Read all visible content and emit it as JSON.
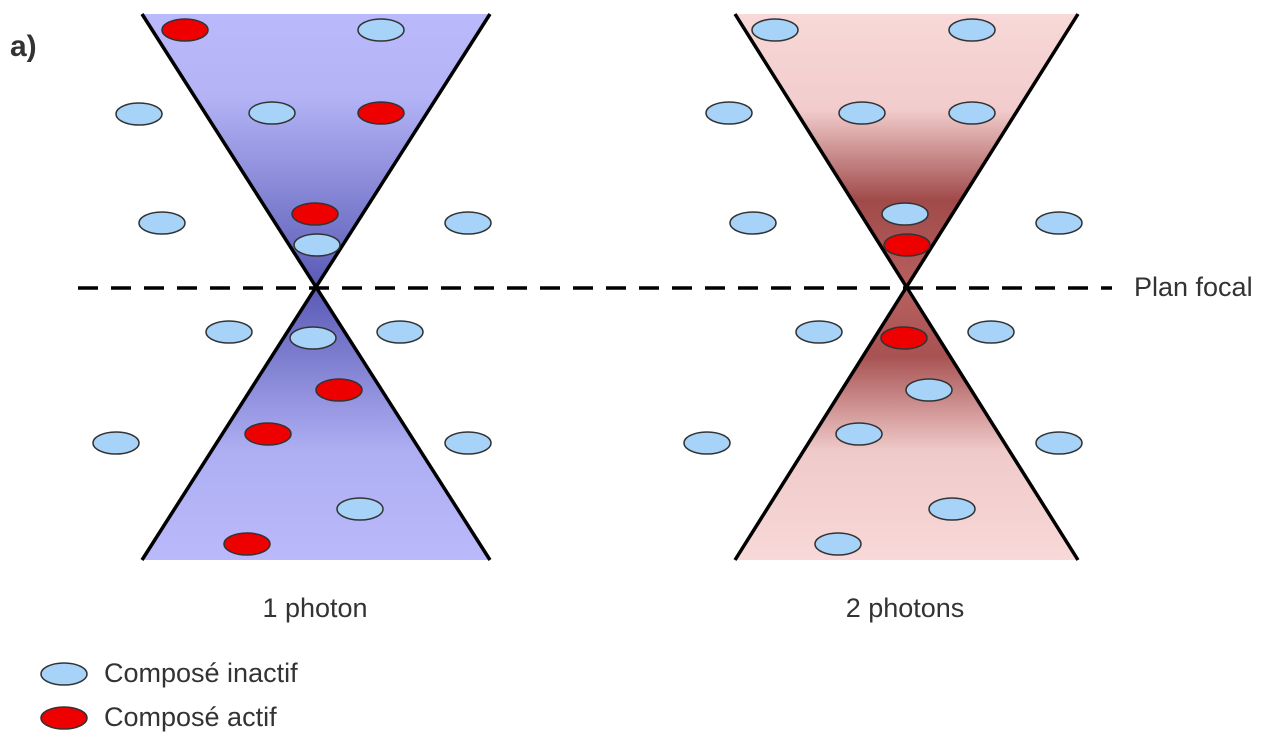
{
  "panel_label": "a)",
  "focal_label": "Plan focal",
  "panels": [
    {
      "label": "1 photon"
    },
    {
      "label": "2 photons"
    }
  ],
  "legend": [
    {
      "label": "Composé inactif"
    },
    {
      "label": "Composé actif"
    }
  ]
}
